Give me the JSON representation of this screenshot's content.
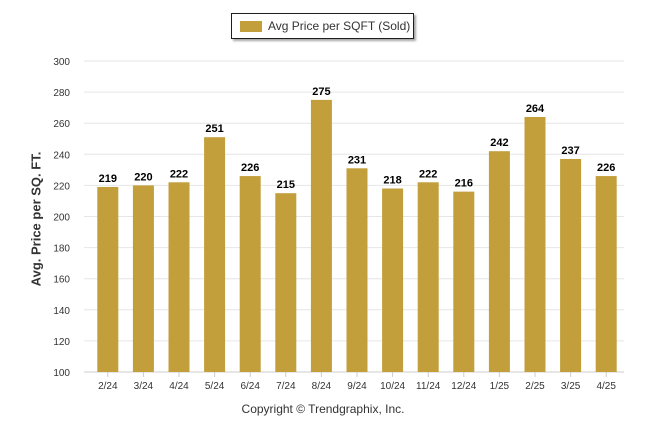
{
  "legend": {
    "label": "Avg Price per SQFT (Sold)"
  },
  "footer": {
    "copyright": "Copyright © Trendgraphix, Inc."
  },
  "colors": {
    "bar": "#C39F3C",
    "grid": "#e6e6e6",
    "axis": "#cccccc",
    "text": "#333333"
  },
  "chart_data": {
    "type": "bar",
    "title": "",
    "xlabel": "",
    "ylabel": "Avg. Price per SQ. FT.",
    "ylim": [
      100,
      300
    ],
    "yticks": [
      100,
      120,
      140,
      160,
      180,
      200,
      220,
      240,
      260,
      280,
      300
    ],
    "grid": true,
    "legend_position": "top-center",
    "categories": [
      "2/24",
      "3/24",
      "4/24",
      "5/24",
      "6/24",
      "7/24",
      "8/24",
      "9/24",
      "10/24",
      "11/24",
      "12/24",
      "1/25",
      "2/25",
      "3/25",
      "4/25"
    ],
    "series": [
      {
        "name": "Avg Price per SQFT (Sold)",
        "values": [
          219,
          220,
          222,
          251,
          226,
          215,
          275,
          231,
          218,
          222,
          216,
          242,
          264,
          237,
          226
        ]
      }
    ]
  }
}
